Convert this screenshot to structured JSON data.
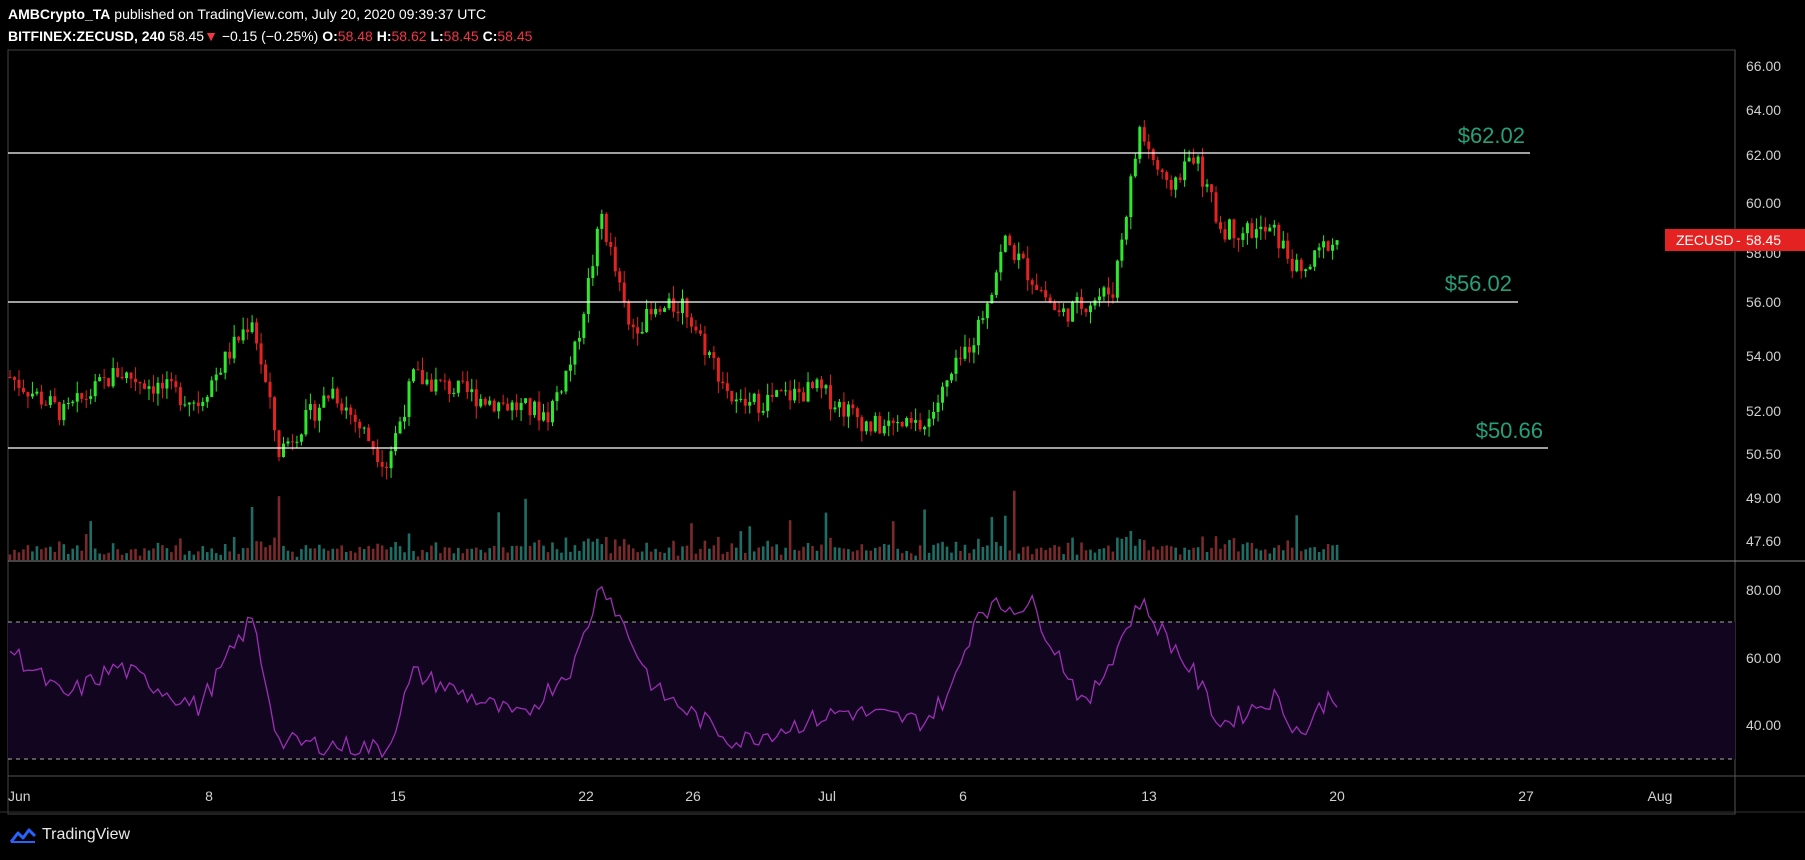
{
  "header": {
    "author": "AMBCrypto_TA",
    "published": "published on TradingView.com, July 20, 2020 09:39:37 UTC",
    "symbol": "BITFINEX:ZECUSD, 240",
    "last": "58.45",
    "change": "−0.15 (−0.25%)",
    "o_label": "O:",
    "o_value": "58.48",
    "h_label": "H:",
    "h_value": "58.62",
    "l_label": "L:",
    "l_value": "58.45",
    "c_label": "C:",
    "c_value": "58.45"
  },
  "price_axis": [
    "66.00",
    "64.00",
    "62.00",
    "60.00",
    "58.00",
    "56.00",
    "54.00",
    "52.00",
    "50.50",
    "49.00",
    "47.60"
  ],
  "rsi_axis": [
    "80.00",
    "60.00",
    "40.00"
  ],
  "time_axis": [
    "Jun",
    "8",
    "15",
    "22",
    "26",
    "Jul",
    "6",
    "13",
    "20",
    "27",
    "Aug"
  ],
  "levels": [
    "$62.02",
    "$56.02",
    "$50.66"
  ],
  "badge": {
    "symbol": "ZECUSD",
    "price": "58.45"
  },
  "brand": "TradingView",
  "colors": {
    "up": "#2ee82e",
    "down": "#e52222",
    "rsi": "#9c2fb5",
    "rsi_band": "#120520",
    "level_text": "#26a07a"
  },
  "chart_data": {
    "type": "candlestick",
    "symbol": "BITFINEX:ZECUSD",
    "interval": "240",
    "approx_close_path": [
      {
        "x": "Jun 1",
        "y": 53.0
      },
      {
        "x": "Jun 3",
        "y": 51.5
      },
      {
        "x": "Jun 5",
        "y": 53.2
      },
      {
        "x": "Jun 8",
        "y": 52.0
      },
      {
        "x": "Jun 10",
        "y": 55.4
      },
      {
        "x": "Jun 11",
        "y": 50.0
      },
      {
        "x": "Jun 13",
        "y": 52.5
      },
      {
        "x": "Jun 15",
        "y": 49.5
      },
      {
        "x": "Jun 16",
        "y": 53.0
      },
      {
        "x": "Jun 19",
        "y": 52.0
      },
      {
        "x": "Jun 21",
        "y": 51.5
      },
      {
        "x": "Jun 22",
        "y": 54.0
      },
      {
        "x": "Jun 23",
        "y": 59.5
      },
      {
        "x": "Jun 24",
        "y": 55.0
      },
      {
        "x": "Jun 26",
        "y": 56.0
      },
      {
        "x": "Jun 28",
        "y": 51.8
      },
      {
        "x": "Jul 1",
        "y": 52.5
      },
      {
        "x": "Jul 3",
        "y": 51.0
      },
      {
        "x": "Jul 5",
        "y": 51.0
      },
      {
        "x": "Jul 7",
        "y": 55.0
      },
      {
        "x": "Jul 8",
        "y": 58.5
      },
      {
        "x": "Jul 10",
        "y": 55.5
      },
      {
        "x": "Jul 12",
        "y": 56.5
      },
      {
        "x": "Jul 13",
        "y": 63.0
      },
      {
        "x": "Jul 14",
        "y": 60.5
      },
      {
        "x": "Jul 15",
        "y": 62.0
      },
      {
        "x": "Jul 16",
        "y": 59.0
      },
      {
        "x": "Jul 18",
        "y": 58.8
      },
      {
        "x": "Jul 19",
        "y": 57.0
      },
      {
        "x": "Jul 20",
        "y": 58.45
      }
    ],
    "rsi_approx": [
      {
        "x": "Jun 1",
        "y": 62
      },
      {
        "x": "Jun 3",
        "y": 48
      },
      {
        "x": "Jun 5",
        "y": 57
      },
      {
        "x": "Jun 8",
        "y": 45
      },
      {
        "x": "Jun 10",
        "y": 71
      },
      {
        "x": "Jun 11",
        "y": 35
      },
      {
        "x": "Jun 15",
        "y": 33
      },
      {
        "x": "Jun 16",
        "y": 55
      },
      {
        "x": "Jun 20",
        "y": 42
      },
      {
        "x": "Jun 22",
        "y": 58
      },
      {
        "x": "Jun 23",
        "y": 82
      },
      {
        "x": "Jun 25",
        "y": 50
      },
      {
        "x": "Jun 28",
        "y": 35
      },
      {
        "x": "Jul 2",
        "y": 44
      },
      {
        "x": "Jul 5",
        "y": 41
      },
      {
        "x": "Jul 6",
        "y": 50
      },
      {
        "x": "Jul 7",
        "y": 74
      },
      {
        "x": "Jul 9",
        "y": 75
      },
      {
        "x": "Jul 11",
        "y": 45
      },
      {
        "x": "Jul 13",
        "y": 76
      },
      {
        "x": "Jul 15",
        "y": 55
      },
      {
        "x": "Jul 16",
        "y": 40
      },
      {
        "x": "Jul 18",
        "y": 48
      },
      {
        "x": "Jul 19",
        "y": 37
      },
      {
        "x": "Jul 20",
        "y": 48
      }
    ],
    "rsi_band": [
      30,
      70
    ],
    "horizontal_levels": [
      62.02,
      56.02,
      50.66
    ],
    "last_price": 58.45
  }
}
